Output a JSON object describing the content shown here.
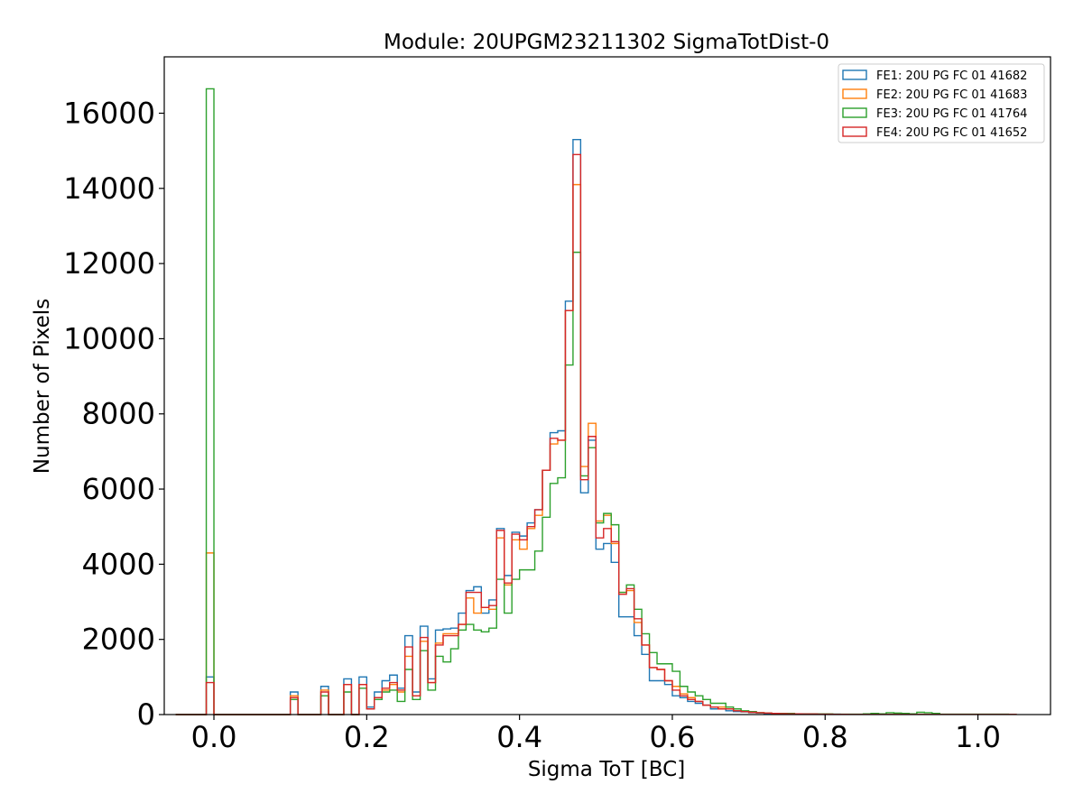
{
  "chart_data": {
    "type": "histogram",
    "title": "Module: 20UPGM23211302 SigmaTotDist-0",
    "xlabel": "Sigma ToT [BC]",
    "ylabel": "Number of Pixels",
    "xlim": [
      -0.065,
      1.095
    ],
    "ylim": [
      0,
      17500
    ],
    "x_ticks": [
      0.0,
      0.2,
      0.4,
      0.6,
      0.8,
      1.0
    ],
    "x_tick_labels": [
      "0.0",
      "0.2",
      "0.4",
      "0.6",
      "0.8",
      "1.0"
    ],
    "y_ticks": [
      0,
      2000,
      4000,
      6000,
      8000,
      10000,
      12000,
      14000,
      16000
    ],
    "y_tick_labels": [
      "0",
      "2000",
      "4000",
      "6000",
      "8000",
      "10000",
      "12000",
      "14000",
      "16000"
    ],
    "bin_edges_range": [
      -0.05,
      1.05
    ],
    "bin_width": 0.01,
    "grid": false,
    "legend_position": "top-right",
    "series": [
      {
        "name": "FE1: 20U PG FC 01 41682",
        "color": "#1f77b4",
        "values": [
          0,
          0,
          0,
          0,
          1000,
          0,
          0,
          0,
          0,
          0,
          0,
          0,
          0,
          0,
          0,
          600,
          0,
          0,
          0,
          750,
          0,
          0,
          950,
          0,
          1000,
          200,
          600,
          900,
          1050,
          700,
          2100,
          600,
          2350,
          950,
          2250,
          2280,
          2300,
          2700,
          3300,
          3400,
          2700,
          3050,
          4950,
          3700,
          4850,
          4750,
          5100,
          5450,
          6500,
          7500,
          7550,
          11000,
          15300,
          5900,
          7300,
          4400,
          4550,
          4050,
          2600,
          2600,
          2100,
          1600,
          900,
          900,
          800,
          500,
          450,
          350,
          300,
          250,
          150,
          150,
          100,
          80,
          70,
          50,
          40,
          30,
          25,
          20,
          20,
          20,
          15,
          10,
          10,
          10,
          10,
          8,
          8,
          5,
          5,
          5,
          5,
          5,
          5,
          5,
          5,
          5,
          5,
          5,
          5,
          5,
          5,
          5,
          5,
          5,
          5,
          5,
          5,
          5
        ]
      },
      {
        "name": "FE2: 20U PG FC 01 41683",
        "color": "#ff7f0e",
        "values": [
          0,
          0,
          0,
          0,
          4300,
          0,
          0,
          0,
          0,
          0,
          0,
          0,
          0,
          0,
          0,
          500,
          0,
          0,
          0,
          650,
          0,
          0,
          800,
          0,
          800,
          150,
          450,
          650,
          800,
          600,
          1550,
          500,
          1950,
          850,
          1900,
          2150,
          2150,
          2400,
          3100,
          2700,
          2850,
          2800,
          4700,
          3450,
          4650,
          4400,
          4950,
          5300,
          6500,
          7200,
          7300,
          10750,
          14100,
          6600,
          7750,
          5150,
          5300,
          4550,
          3250,
          3300,
          2450,
          1850,
          1250,
          1200,
          900,
          750,
          550,
          450,
          350,
          250,
          200,
          200,
          150,
          100,
          80,
          60,
          50,
          40,
          30,
          25,
          20,
          20,
          15,
          15,
          10,
          10,
          8,
          8,
          5,
          5,
          5,
          5,
          5,
          5,
          5,
          5,
          5,
          5,
          5,
          5,
          5,
          5,
          5,
          5,
          5,
          5,
          5,
          5,
          5,
          5
        ]
      },
      {
        "name": "FE3: 20U PG FC 01 41764",
        "color": "#2ca02c",
        "values": [
          0,
          0,
          0,
          0,
          16650,
          0,
          0,
          0,
          0,
          0,
          0,
          0,
          0,
          0,
          0,
          400,
          0,
          0,
          0,
          500,
          0,
          0,
          600,
          0,
          700,
          150,
          400,
          600,
          650,
          350,
          1200,
          400,
          1700,
          650,
          1550,
          1400,
          1750,
          2250,
          2400,
          2250,
          2200,
          2300,
          3600,
          2700,
          3600,
          3850,
          3850,
          4350,
          5250,
          6150,
          6300,
          9300,
          12300,
          6350,
          7100,
          5100,
          5350,
          5050,
          3250,
          3450,
          2800,
          2150,
          1650,
          1350,
          1350,
          1150,
          750,
          600,
          500,
          400,
          300,
          300,
          200,
          150,
          100,
          80,
          50,
          40,
          30,
          30,
          30,
          20,
          20,
          20,
          15,
          15,
          10,
          10,
          10,
          10,
          20,
          30,
          20,
          50,
          40,
          30,
          20,
          60,
          50,
          30,
          10,
          10,
          10,
          10,
          10,
          10,
          10,
          10,
          10
        ]
      },
      {
        "name": "FE4: 20U PG FC 01 41652",
        "color": "#d62728",
        "values": [
          0,
          0,
          0,
          0,
          850,
          0,
          0,
          0,
          0,
          0,
          0,
          0,
          0,
          0,
          0,
          450,
          0,
          0,
          0,
          600,
          0,
          0,
          800,
          0,
          800,
          150,
          450,
          700,
          850,
          650,
          1800,
          500,
          2050,
          850,
          1850,
          2100,
          2100,
          2400,
          3250,
          3250,
          2850,
          2900,
          4900,
          3500,
          4800,
          4650,
          5000,
          5450,
          6500,
          7350,
          7300,
          10750,
          14900,
          6250,
          7400,
          4700,
          4950,
          4600,
          3200,
          3350,
          2550,
          1850,
          1250,
          1200,
          900,
          650,
          500,
          400,
          350,
          250,
          200,
          150,
          150,
          100,
          80,
          60,
          50,
          40,
          30,
          25,
          20,
          20,
          15,
          15,
          10,
          10,
          8,
          8,
          5,
          5,
          5,
          5,
          5,
          5,
          5,
          5,
          5,
          5,
          5,
          5,
          5,
          5,
          5,
          5,
          5,
          5,
          5,
          5,
          5,
          5
        ]
      }
    ]
  }
}
